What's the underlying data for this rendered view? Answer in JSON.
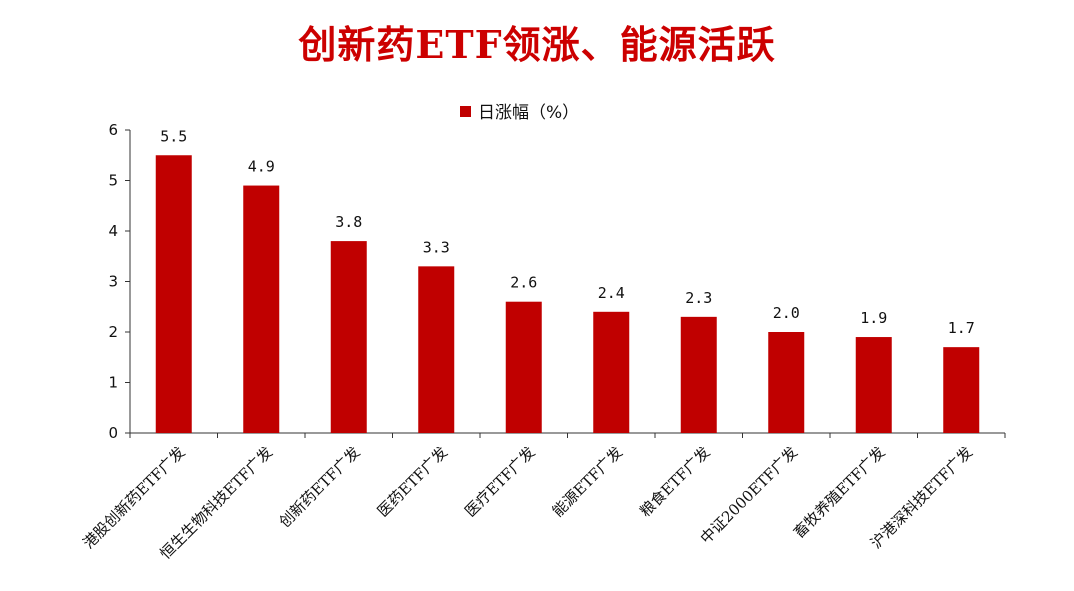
{
  "chart_data": {
    "type": "bar",
    "title": "创新药ETF领涨、能源活跃",
    "categories": [
      "港股创新药ETF广发",
      "恒生生物科技ETF广发",
      "创新药ETF广发",
      "医药ETF广发",
      "医疗ETF广发",
      "能源ETF广发",
      "粮食ETF广发",
      "中证2000ETF广发",
      "畜牧养殖ETF广发",
      "沪港深科技ETF广发"
    ],
    "series": [
      {
        "name": "日涨幅（%）",
        "values": [
          5.5,
          4.9,
          3.8,
          3.3,
          2.6,
          2.4,
          2.3,
          2.0,
          1.9,
          1.7
        ],
        "color": "#c00000"
      }
    ],
    "value_labels": [
      "5.5",
      "4.9",
      "3.8",
      "3.3",
      "2.6",
      "2.4",
      "2.3",
      "2.0",
      "1.9",
      "1.7"
    ],
    "y_ticks": [
      "0",
      "1",
      "2",
      "3",
      "4",
      "5",
      "6"
    ],
    "ylim": [
      0,
      6
    ],
    "legend_position": "top-center",
    "grid": false
  }
}
